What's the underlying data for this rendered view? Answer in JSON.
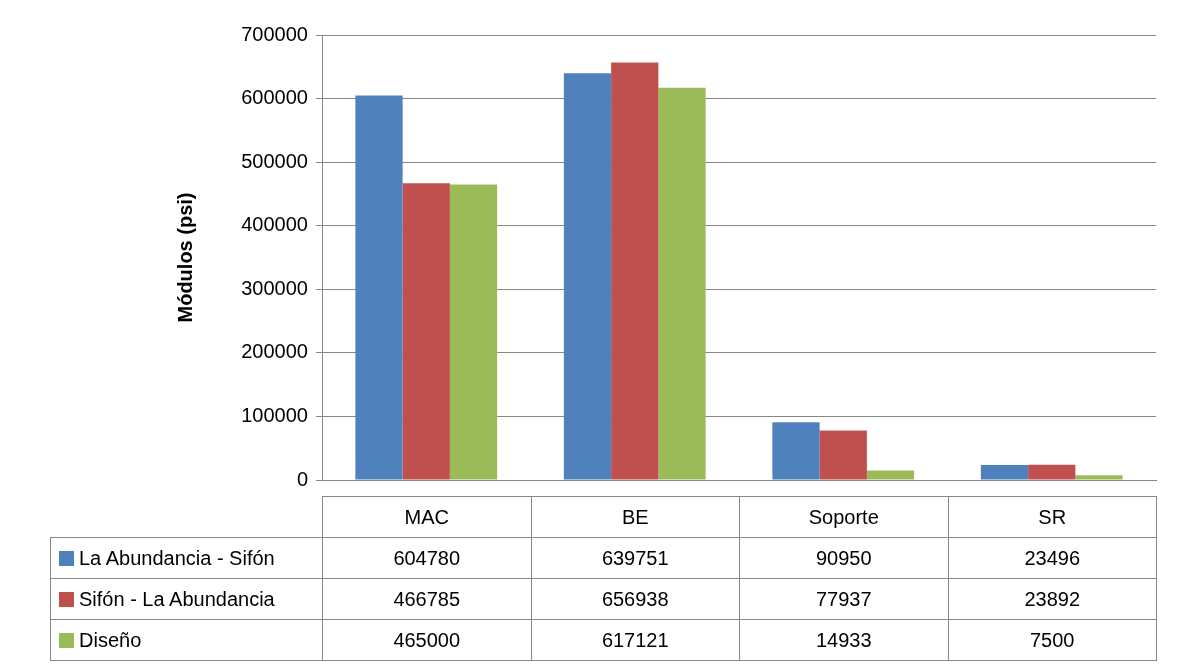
{
  "chart_data": {
    "type": "bar",
    "ylabel": "Módulos (psi)",
    "categories": [
      "MAC",
      "BE",
      "Soporte",
      "SR"
    ],
    "series": [
      {
        "name": "La Abundancia - Sifón",
        "color": "#4f81bd",
        "values": [
          604780,
          639751,
          90950,
          23496
        ]
      },
      {
        "name": "Sifón - La Abundancia",
        "color": "#c0504d",
        "values": [
          466785,
          656938,
          77937,
          23892
        ]
      },
      {
        "name": "Diseño",
        "color": "#9bbb59",
        "values": [
          465000,
          617121,
          14933,
          7500
        ]
      }
    ],
    "ylim": [
      0,
      700000
    ],
    "yticks": [
      0,
      100000,
      200000,
      300000,
      400000,
      500000,
      600000,
      700000
    ],
    "grid": "y",
    "legend": "bottom",
    "data_labels": true
  }
}
